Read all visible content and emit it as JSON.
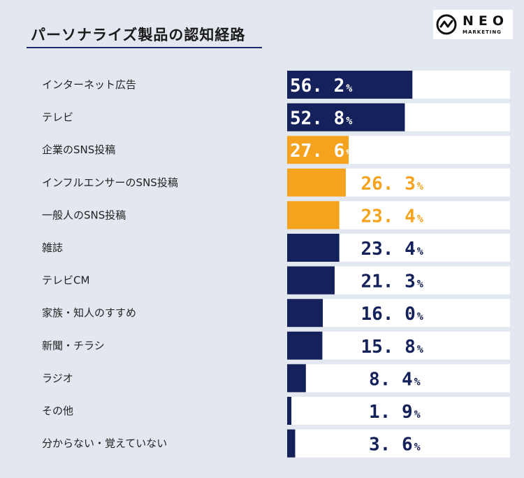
{
  "logo": {
    "name": "NEO",
    "sub": "MARKETING"
  },
  "chart_data": {
    "type": "bar",
    "orientation": "horizontal",
    "title": "パーソナライズ製品の認知経路",
    "unit": "%",
    "xlim": [
      0,
      100
    ],
    "categories": [
      "インターネット広告",
      "テレビ",
      "企業のSNS投稿",
      "インフルエンサーのSNS投稿",
      "一般人のSNS投稿",
      "雑誌",
      "テレビCM",
      "家族・知人のすすめ",
      "新聞・チラシ",
      "ラジオ",
      "その他",
      "分からない・覚えていない"
    ],
    "values": [
      56.2,
      52.8,
      27.6,
      26.3,
      23.4,
      23.4,
      21.3,
      16.0,
      15.8,
      8.4,
      1.9,
      3.6
    ],
    "value_labels": [
      "56. 2",
      "52. 8",
      "27. 6",
      "26. 3",
      "23. 4",
      "23. 4",
      "21. 3",
      "16. 0",
      "15. 8",
      "8. 4",
      "1. 9",
      "3. 6"
    ],
    "highlighted": [
      false,
      false,
      true,
      true,
      true,
      false,
      false,
      false,
      false,
      false,
      false,
      false
    ],
    "colors": {
      "navy": "#14215a",
      "orange": "#f5a21f",
      "track": "#ffffff"
    }
  }
}
